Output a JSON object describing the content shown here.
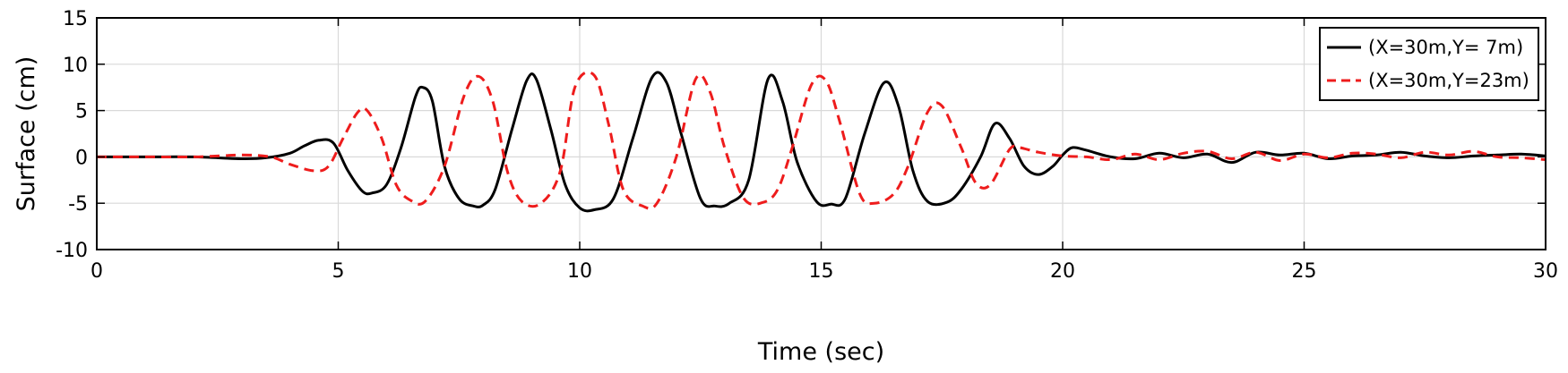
{
  "chart_data": {
    "type": "line",
    "title": "",
    "xlabel": "Time (sec)",
    "ylabel": "Surface (cm)",
    "xlim": [
      0,
      30
    ],
    "ylim": [
      -10,
      15
    ],
    "xticks": [
      0,
      5,
      10,
      15,
      20,
      25,
      30
    ],
    "yticks": [
      -10,
      -5,
      0,
      5,
      10,
      15
    ],
    "grid": true,
    "legend_position": "top-right",
    "series": [
      {
        "name": "(X=30m,Y= 7m)",
        "color": "#000000",
        "style": "solid",
        "x": [
          0,
          1,
          2,
          3,
          3.5,
          4.0,
          4.3,
          4.6,
          4.9,
          5.2,
          5.5,
          5.7,
          6.0,
          6.3,
          6.6,
          6.75,
          6.95,
          7.2,
          7.5,
          7.8,
          8.0,
          8.25,
          8.6,
          8.9,
          9.1,
          9.4,
          9.7,
          10.0,
          10.3,
          10.7,
          11.1,
          11.5,
          11.8,
          12.1,
          12.5,
          12.8,
          13.1,
          13.5,
          13.9,
          14.2,
          14.5,
          14.9,
          15.2,
          15.5,
          15.9,
          16.3,
          16.6,
          16.9,
          17.2,
          17.6,
          17.9,
          18.3,
          18.6,
          18.9,
          19.2,
          19.5,
          19.8,
          20.0,
          20.2,
          20.5,
          21.0,
          21.5,
          22.0,
          22.5,
          23.0,
          23.5,
          24.0,
          24.5,
          25.0,
          25.5,
          26.0,
          26.5,
          27.0,
          27.5,
          28.0,
          28.5,
          29.0,
          29.5,
          30.0
        ],
        "y": [
          0,
          0,
          0,
          -0.2,
          -0.1,
          0.4,
          1.2,
          1.8,
          1.5,
          -1.5,
          -3.7,
          -3.9,
          -3.0,
          1.0,
          6.5,
          7.5,
          6.0,
          -1.0,
          -4.5,
          -5.3,
          -5.2,
          -3.5,
          3.0,
          8.2,
          8.4,
          3.0,
          -3.0,
          -5.5,
          -5.7,
          -4.5,
          2.0,
          8.6,
          8.0,
          2.5,
          -4.5,
          -5.3,
          -5.0,
          -2.5,
          8.4,
          6.0,
          -0.5,
          -4.8,
          -5.1,
          -4.5,
          2.5,
          8.0,
          5.5,
          -1.5,
          -4.8,
          -4.9,
          -3.5,
          0.0,
          3.6,
          2.0,
          -1.0,
          -1.9,
          -1.0,
          0.2,
          1.0,
          0.7,
          0.0,
          -0.2,
          0.4,
          -0.1,
          0.3,
          -0.6,
          0.5,
          0.2,
          0.4,
          -0.2,
          0.1,
          0.2,
          0.5,
          0.1,
          -0.1,
          0.1,
          0.2,
          0.3,
          0.1
        ]
      },
      {
        "name": "(X=30m,Y=23m)",
        "color": "#ee1c1c",
        "style": "dashed",
        "x": [
          0,
          1,
          2,
          3,
          3.6,
          4.0,
          4.5,
          4.8,
          5.1,
          5.4,
          5.6,
          5.9,
          6.2,
          6.5,
          6.8,
          7.2,
          7.6,
          7.9,
          8.2,
          8.5,
          8.8,
          9.2,
          9.6,
          9.9,
          10.3,
          10.6,
          10.9,
          11.3,
          11.6,
          12.0,
          12.4,
          12.7,
          13.0,
          13.4,
          13.8,
          14.1,
          14.4,
          14.8,
          15.1,
          15.4,
          15.8,
          16.1,
          16.5,
          16.8,
          17.2,
          17.5,
          17.9,
          18.2,
          18.5,
          18.9,
          19.1,
          19.5,
          20.0,
          20.5,
          21.0,
          21.5,
          22.0,
          22.5,
          23.0,
          23.5,
          24.0,
          24.5,
          25.0,
          25.5,
          26.0,
          26.5,
          27.0,
          27.5,
          28.0,
          28.5,
          29.0,
          29.5,
          30.0
        ],
        "y": [
          0,
          0,
          0,
          0.2,
          0.0,
          -0.8,
          -1.5,
          -1.0,
          2.0,
          4.8,
          5.0,
          2.0,
          -3.0,
          -4.7,
          -4.8,
          -1.0,
          6.5,
          8.7,
          6.0,
          -1.5,
          -4.8,
          -5.0,
          -1.5,
          7.5,
          8.8,
          3.5,
          -3.5,
          -5.3,
          -5.0,
          0.0,
          8.4,
          7.0,
          1.0,
          -4.5,
          -4.9,
          -3.5,
          1.0,
          7.8,
          8.2,
          3.5,
          -4.0,
          -5.0,
          -4.0,
          -1.0,
          4.8,
          5.5,
          1.0,
          -2.8,
          -3.0,
          0.8,
          1.0,
          0.5,
          0.1,
          0.0,
          -0.3,
          0.3,
          -0.3,
          0.4,
          0.6,
          -0.2,
          0.5,
          -0.4,
          0.3,
          -0.1,
          0.4,
          0.3,
          -0.1,
          0.5,
          0.2,
          0.6,
          0.0,
          -0.1,
          -0.3
        ]
      }
    ]
  }
}
